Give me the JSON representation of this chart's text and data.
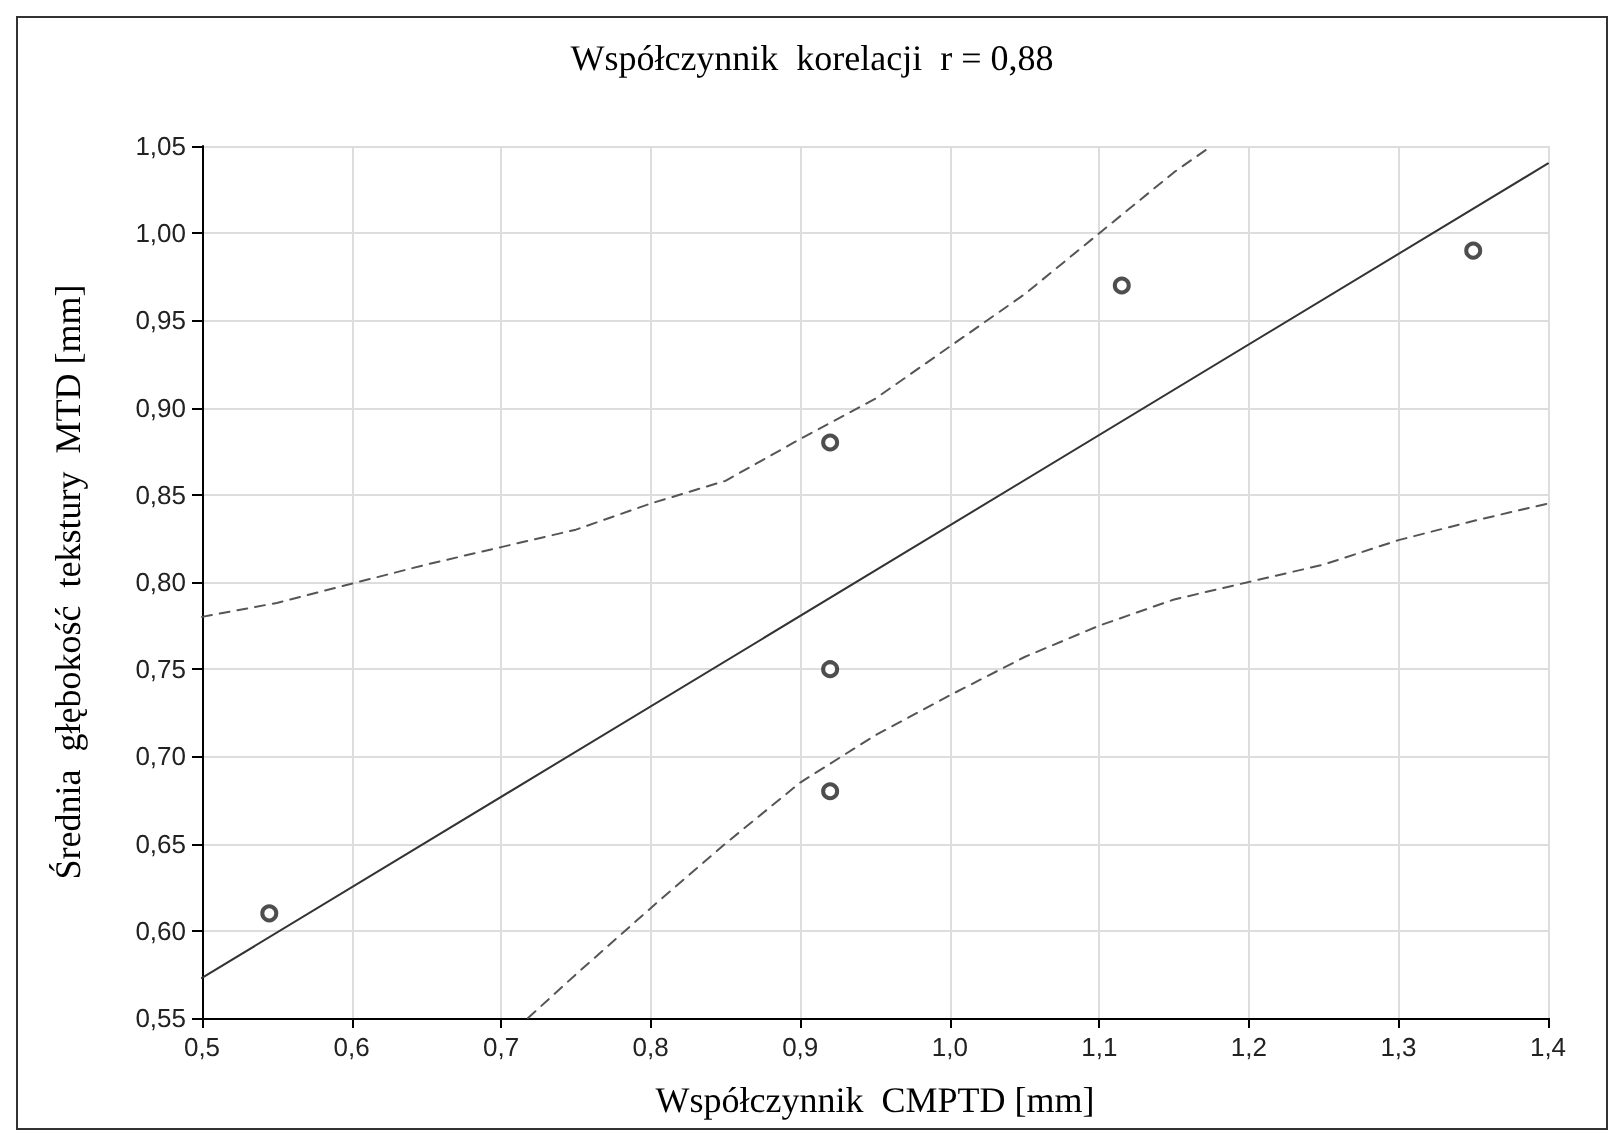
{
  "chart_data": {
    "type": "scatter",
    "title": "Współczynnik  korelacji  r = 0,88",
    "xlabel": "Współczynnik  CMPTD [mm]",
    "ylabel": "Średnia  głębokość  tekstury  MTD [mm]",
    "xlim": [
      0.5,
      1.4
    ],
    "ylim": [
      0.55,
      1.05
    ],
    "xticks": [
      {
        "value": 0.5,
        "label": "0,5"
      },
      {
        "value": 0.6,
        "label": "0,6"
      },
      {
        "value": 0.7,
        "label": "0,7"
      },
      {
        "value": 0.8,
        "label": "0,8"
      },
      {
        "value": 0.9,
        "label": "0,9"
      },
      {
        "value": 1.0,
        "label": "1,0"
      },
      {
        "value": 1.1,
        "label": "1,1"
      },
      {
        "value": 1.2,
        "label": "1,2"
      },
      {
        "value": 1.3,
        "label": "1,3"
      },
      {
        "value": 1.4,
        "label": "1,4"
      }
    ],
    "yticks": [
      {
        "value": 0.55,
        "label": "0,55"
      },
      {
        "value": 0.6,
        "label": "0,60"
      },
      {
        "value": 0.65,
        "label": "0,65"
      },
      {
        "value": 0.7,
        "label": "0,70"
      },
      {
        "value": 0.75,
        "label": "0,75"
      },
      {
        "value": 0.8,
        "label": "0,80"
      },
      {
        "value": 0.85,
        "label": "0,85"
      },
      {
        "value": 0.9,
        "label": "0,90"
      },
      {
        "value": 0.95,
        "label": "0,95"
      },
      {
        "value": 1.0,
        "label": "1,00"
      },
      {
        "value": 1.05,
        "label": "1,05"
      }
    ],
    "grid": true,
    "series": [
      {
        "marker": "circle",
        "color": "#222222",
        "x": [
          0.545,
          0.92,
          0.92,
          0.92,
          1.115,
          1.35
        ],
        "values": [
          0.61,
          0.88,
          0.75,
          0.68,
          0.97,
          0.99
        ]
      },
      {
        "type": "line",
        "marker": "none",
        "color": "#333333",
        "line_style": "solid",
        "x": [
          0.5,
          1.4
        ],
        "values": [
          0.573,
          1.04
        ]
      },
      {
        "type": "line",
        "marker": "none",
        "color": "#555555",
        "line_style": "dashed",
        "x": [
          0.5,
          0.55,
          0.6,
          0.65,
          0.7,
          0.75,
          0.8,
          0.85,
          0.9,
          0.95,
          1.0,
          1.05,
          1.1,
          1.15,
          1.175
        ],
        "values": [
          0.78,
          0.788,
          0.799,
          0.81,
          0.82,
          0.83,
          0.845,
          0.858,
          0.882,
          0.905,
          0.935,
          0.965,
          1.0,
          1.035,
          1.05
        ]
      },
      {
        "type": "line",
        "marker": "none",
        "color": "#555555",
        "line_style": "dashed",
        "x": [
          0.718,
          0.75,
          0.8,
          0.85,
          0.9,
          0.95,
          1.0,
          1.05,
          1.1,
          1.15,
          1.2,
          1.25,
          1.3,
          1.35,
          1.4
        ],
        "values": [
          0.55,
          0.575,
          0.613,
          0.65,
          0.685,
          0.712,
          0.735,
          0.757,
          0.775,
          0.79,
          0.8,
          0.81,
          0.824,
          0.835,
          0.845
        ]
      }
    ]
  }
}
